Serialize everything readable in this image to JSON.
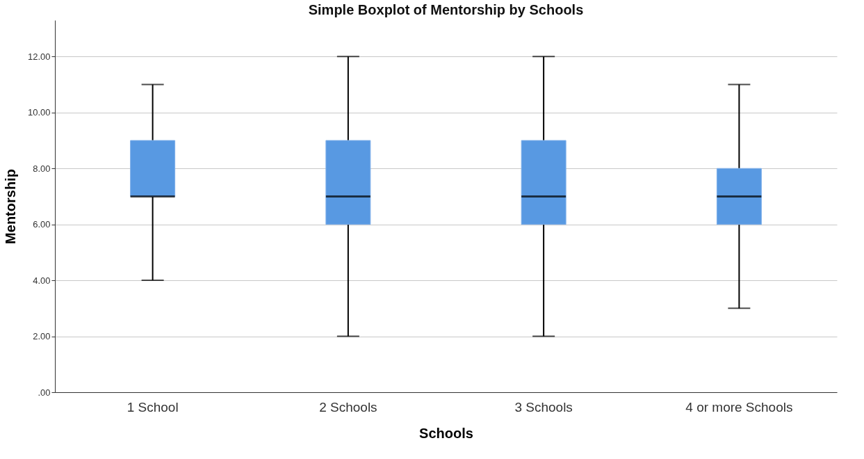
{
  "chart_data": {
    "type": "box",
    "title": "Simple Boxplot of Mentorship by Schools",
    "xlabel": "Schools",
    "ylabel": "Mentorship",
    "categories": [
      "1 School",
      "2 Schools",
      "3 Schools",
      "4 or more Schools"
    ],
    "series": [
      {
        "color": "#5899e2",
        "boxes": [
          {
            "low": 4,
            "q1": 7,
            "median": 7,
            "q3": 9,
            "high": 11
          },
          {
            "low": 2,
            "q1": 6,
            "median": 7,
            "q3": 9,
            "high": 12
          },
          {
            "low": 2,
            "q1": 6,
            "median": 7,
            "q3": 9,
            "high": 12
          },
          {
            "low": 3,
            "q1": 6,
            "median": 7,
            "q3": 8,
            "high": 11
          }
        ]
      }
    ],
    "ylim": [
      0,
      13.3
    ],
    "yticks": [
      {
        "value": 0,
        "label": ".00"
      },
      {
        "value": 2,
        "label": "2.00"
      },
      {
        "value": 4,
        "label": "4.00"
      },
      {
        "value": 6,
        "label": "6.00"
      },
      {
        "value": 8,
        "label": "8.00"
      },
      {
        "value": 10,
        "label": "10.00"
      },
      {
        "value": 12,
        "label": "12.00"
      }
    ],
    "grid": "y"
  }
}
